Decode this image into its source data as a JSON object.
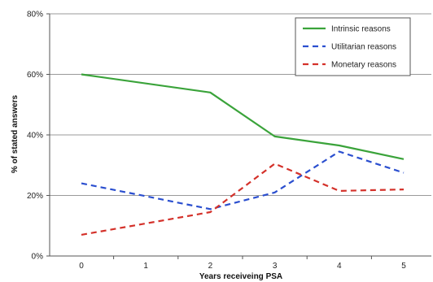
{
  "chart_data": {
    "type": "line",
    "title": "",
    "xlabel": "Years receiveing PSA",
    "ylabel": "% of stated answers",
    "x": [
      0,
      1,
      2,
      3,
      4,
      5
    ],
    "x_tick_labels": [
      "0",
      "1",
      "2",
      "3",
      "4",
      "5"
    ],
    "ylim": [
      0,
      80
    ],
    "y_ticks": [
      0,
      20,
      40,
      60,
      80
    ],
    "y_tick_labels": [
      "0%",
      "20%",
      "40%",
      "60%",
      "80%"
    ],
    "grid": "horizontal",
    "legend_position": "top-right",
    "series": [
      {
        "name": "Intrinsic reasons",
        "style": "solid",
        "color": "#3aa33a",
        "x": [
          0,
          2,
          3,
          4,
          5
        ],
        "values": [
          60,
          54,
          39.5,
          36.5,
          32
        ]
      },
      {
        "name": "Utilitarian reasons",
        "style": "dashed",
        "color": "#2b4fcf",
        "x": [
          0,
          2,
          3,
          4,
          5
        ],
        "values": [
          24,
          15.5,
          21,
          34.5,
          27.5
        ]
      },
      {
        "name": "Monetary reasons",
        "style": "dashed",
        "color": "#d4312a",
        "x": [
          0,
          2,
          3,
          4,
          5
        ],
        "values": [
          7,
          14.5,
          30.5,
          21.5,
          22
        ]
      }
    ]
  }
}
